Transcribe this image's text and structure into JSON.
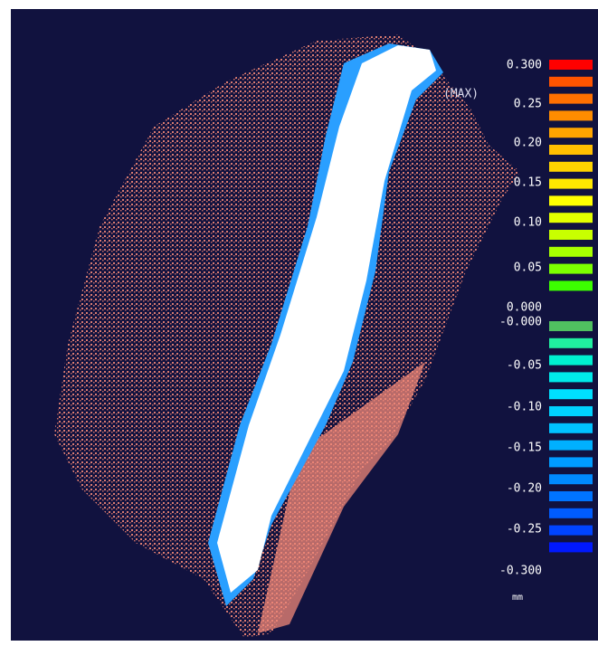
{
  "legend": {
    "labels": [
      "0.300",
      "0.25",
      "0.20",
      "0.15",
      "0.10",
      "0.05",
      "0.000",
      "-0.000",
      "-0.05",
      "-0.10",
      "-0.15",
      "-0.20",
      "-0.25",
      "-0.300"
    ],
    "unit": "mm",
    "max_marker": "(MAX)",
    "positive_colors": [
      "#ff0000",
      "#ff5400",
      "#ff7000",
      "#ff8c00",
      "#ffa500",
      "#ffbe00",
      "#ffd400",
      "#ffe800",
      "#ffff00",
      "#e4ff00",
      "#c8ff00",
      "#a8ff00",
      "#7cff00",
      "#3cff00"
    ],
    "negative_colors": [
      "#50c060",
      "#20f0a0",
      "#00f0d0",
      "#00eaea",
      "#00e0ff",
      "#00d2ff",
      "#00c2ff",
      "#00b0ff",
      "#009cff",
      "#008aff",
      "#0074ff",
      "#005cff",
      "#0044ff",
      "#0018ff"
    ]
  }
}
